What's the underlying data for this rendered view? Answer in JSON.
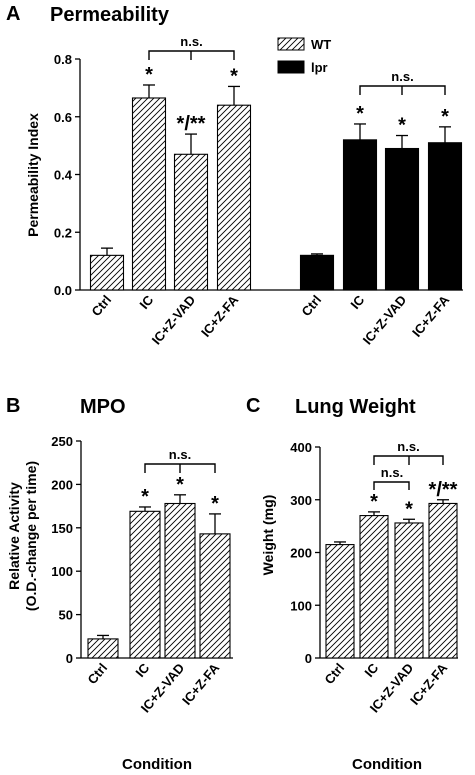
{
  "chart_data": [
    {
      "type": "bar",
      "panel_letter": "A",
      "title": "Permeability",
      "ylabel": "Permeability Index",
      "xlabel": "",
      "ylim": [
        0,
        0.8
      ],
      "yticks": [
        "0.0",
        "0.2",
        "0.4",
        "0.6",
        "0.8"
      ],
      "categories": [
        "Ctrl",
        "IC",
        "IC+Z-VAD",
        "IC+Z-FA"
      ],
      "legend": {
        "position": "top-center",
        "entries": [
          "WT",
          "lpr"
        ]
      },
      "series": [
        {
          "name": "WT",
          "pattern": "hatched",
          "values": [
            0.12,
            0.665,
            0.47,
            0.64
          ],
          "errors": [
            0.025,
            0.045,
            0.07,
            0.065
          ],
          "significance": [
            "",
            "*",
            "*/**",
            "*"
          ]
        },
        {
          "name": "lpr",
          "pattern": "solid-black",
          "values": [
            0.12,
            0.52,
            0.49,
            0.51
          ],
          "errors": [
            0.005,
            0.055,
            0.045,
            0.055
          ],
          "significance": [
            "",
            "*",
            "*",
            "*"
          ]
        }
      ],
      "annotations": [
        "n.s.",
        "n.s."
      ]
    },
    {
      "type": "bar",
      "panel_letter": "B",
      "title": "MPO",
      "ylabel": "Relative Activity",
      "ylabel2": "(O.D.-change per time)",
      "xlabel": "Condition",
      "ylim": [
        0,
        250
      ],
      "yticks": [
        "0",
        "50",
        "100",
        "150",
        "200",
        "250"
      ],
      "categories": [
        "Ctrl",
        "IC",
        "IC+Z-VAD",
        "IC+Z-FA"
      ],
      "series": [
        {
          "pattern": "hatched",
          "values": [
            22,
            169,
            178,
            143
          ],
          "errors": [
            4,
            5,
            10,
            23
          ],
          "significance": [
            "",
            "*",
            "*",
            "*"
          ]
        }
      ],
      "annotations": [
        "n.s."
      ]
    },
    {
      "type": "bar",
      "panel_letter": "C",
      "title": "Lung Weight",
      "ylabel": "Weight (mg)",
      "xlabel": "Condition",
      "ylim": [
        0,
        400
      ],
      "yticks": [
        "0",
        "100",
        "200",
        "300",
        "400"
      ],
      "categories": [
        "Ctrl",
        "IC",
        "IC+Z-VAD",
        "IC+Z-FA"
      ],
      "series": [
        {
          "pattern": "hatched",
          "values": [
            215,
            270,
            256,
            293
          ],
          "errors": [
            5,
            7,
            7,
            7
          ],
          "significance": [
            "",
            "*",
            "*",
            "*/**"
          ]
        }
      ],
      "annotations": [
        "n.s.",
        "n.s."
      ]
    }
  ]
}
